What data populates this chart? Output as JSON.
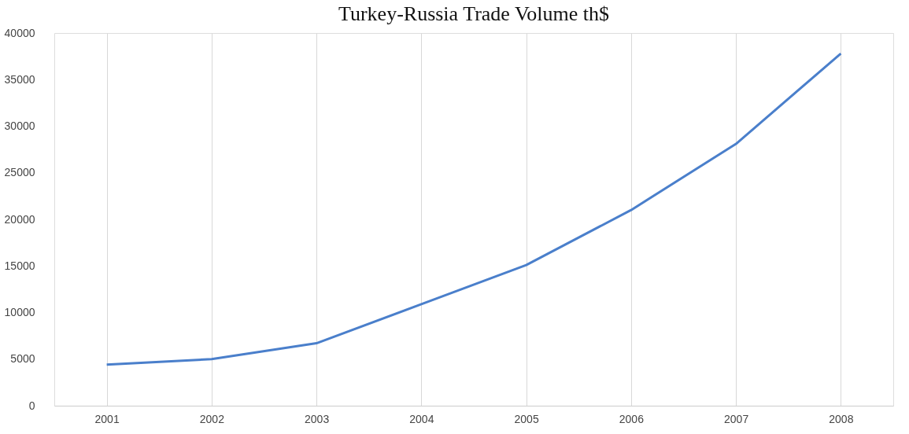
{
  "chart_data": {
    "type": "line",
    "title": "Turkey-Russia Trade Volume th$",
    "categories": [
      "2001",
      "2002",
      "2003",
      "2004",
      "2005",
      "2006",
      "2007",
      "2008"
    ],
    "series": [
      {
        "color": "#4a7fcb",
        "values": [
          4400,
          5000,
          6700,
          10900,
          15100,
          21000,
          28100,
          37800
        ]
      }
    ],
    "ylim": [
      0,
      40000
    ],
    "yticks": [
      0,
      5000,
      10000,
      15000,
      20000,
      25000,
      30000,
      35000,
      40000
    ],
    "grid": "x",
    "legend": false,
    "marker": "none",
    "line_style": "solid"
  }
}
